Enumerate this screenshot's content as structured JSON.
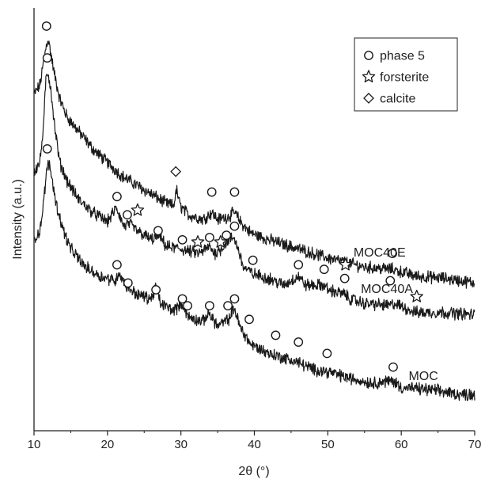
{
  "chart_data": {
    "type": "line",
    "xlabel": "2θ (°)",
    "ylabel": "Intensity (a.u.)",
    "xlim": [
      10,
      70
    ],
    "xticks": [
      10,
      20,
      30,
      40,
      50,
      60,
      70
    ],
    "y_tick_labels": false,
    "grid": false,
    "legend": {
      "placement": "top-right",
      "entries": [
        {
          "label": "phase 5",
          "marker": "circle"
        },
        {
          "label": "forsterite",
          "marker": "star"
        },
        {
          "label": "calcite",
          "marker": "diamond"
        }
      ]
    },
    "series": [
      {
        "name": "MOC40E",
        "x": [
          10.0,
          10.8,
          11.3,
          11.7,
          11.9,
          12.2,
          12.7,
          13.5,
          14.5,
          16,
          18,
          20,
          22,
          24,
          26,
          28,
          29.0,
          29.4,
          29.9,
          31,
          33,
          34.2,
          35,
          36.3,
          37.3,
          38.3,
          39.5,
          42,
          45,
          50,
          55,
          58.8,
          62,
          66,
          70
        ],
        "y": [
          0.79,
          0.81,
          0.86,
          0.9,
          0.91,
          0.89,
          0.84,
          0.78,
          0.74,
          0.71,
          0.67,
          0.64,
          0.61,
          0.59,
          0.57,
          0.55,
          0.545,
          0.58,
          0.545,
          0.525,
          0.515,
          0.53,
          0.515,
          0.52,
          0.53,
          0.505,
          0.485,
          0.47,
          0.455,
          0.43,
          0.41,
          0.405,
          0.39,
          0.385,
          0.375
        ]
      },
      {
        "name": "MOC40A",
        "x": [
          10.0,
          10.8,
          11.3,
          11.6,
          11.9,
          12.3,
          12.8,
          13.5,
          14.5,
          16,
          18,
          20,
          21.2,
          21.5,
          22.2,
          23,
          24,
          26,
          27,
          28,
          30,
          31,
          32.5,
          33.9,
          34.6,
          35.5,
          36.5,
          37.2,
          37.8,
          38.5,
          39.8,
          42,
          44,
          46.0,
          47,
          49.5,
          50,
          52.3,
          53,
          55,
          58.5,
          59,
          62,
          66,
          70
        ],
        "y": [
          0.62,
          0.64,
          0.72,
          0.82,
          0.84,
          0.8,
          0.72,
          0.64,
          0.6,
          0.56,
          0.53,
          0.51,
          0.54,
          0.53,
          0.5,
          0.505,
          0.49,
          0.47,
          0.48,
          0.455,
          0.45,
          0.445,
          0.44,
          0.455,
          0.44,
          0.45,
          0.47,
          0.475,
          0.45,
          0.41,
          0.395,
          0.385,
          0.37,
          0.39,
          0.37,
          0.37,
          0.36,
          0.35,
          0.34,
          0.33,
          0.325,
          0.33,
          0.31,
          0.31,
          0.305
        ]
      },
      {
        "name": "MOC",
        "x": [
          10.0,
          10.8,
          11.3,
          11.7,
          12.0,
          12.4,
          13.0,
          14.0,
          15,
          17,
          19,
          21.2,
          21.5,
          22.5,
          24,
          26,
          26.6,
          27.2,
          29,
          30.2,
          31,
          33,
          33.8,
          35,
          36.5,
          37.3,
          38,
          39.5,
          42,
          44,
          46.0,
          48,
          50,
          53,
          56,
          58.9,
          60,
          64,
          68,
          70
        ],
        "y": [
          0.47,
          0.49,
          0.55,
          0.62,
          0.64,
          0.61,
          0.55,
          0.49,
          0.45,
          0.41,
          0.39,
          0.38,
          0.4,
          0.37,
          0.35,
          0.34,
          0.37,
          0.33,
          0.315,
          0.33,
          0.3,
          0.29,
          0.31,
          0.28,
          0.295,
          0.32,
          0.28,
          0.24,
          0.22,
          0.21,
          0.2,
          0.185,
          0.18,
          0.165,
          0.155,
          0.16,
          0.145,
          0.14,
          0.13,
          0.13
        ]
      }
    ],
    "annotations": [
      {
        "series": "MOC40E",
        "marker": "circle",
        "x": [
          11.7,
          34.2,
          37.3,
          58.8
        ],
        "y": [
          0.94,
          0.575,
          0.575,
          0.44
        ]
      },
      {
        "series": "MOC40E",
        "marker": "diamond",
        "x": [
          29.3
        ],
        "y": [
          0.62
        ]
      },
      {
        "series": "MOC40A",
        "marker": "circle",
        "x": [
          11.8,
          21.3,
          22.7,
          26.9,
          30.2,
          33.9,
          36.2,
          37.3,
          39.8,
          46.0,
          49.5,
          52.3,
          58.5
        ],
        "y": [
          0.87,
          0.565,
          0.525,
          0.49,
          0.47,
          0.475,
          0.48,
          0.5,
          0.425,
          0.415,
          0.405,
          0.385,
          0.38
        ]
      },
      {
        "series": "MOC40A",
        "marker": "star",
        "x": [
          24.1,
          32.3,
          35.4,
          52.4,
          62.1
        ],
        "y": [
          0.535,
          0.465,
          0.465,
          0.415,
          0.345
        ]
      },
      {
        "series": "MOC",
        "marker": "circle",
        "x": [
          11.8,
          21.3,
          22.8,
          26.6,
          30.2,
          30.9,
          33.9,
          36.4,
          37.3,
          39.3,
          42.9,
          46.0,
          49.9,
          58.9
        ],
        "y": [
          0.67,
          0.415,
          0.375,
          0.36,
          0.34,
          0.325,
          0.325,
          0.325,
          0.34,
          0.295,
          0.26,
          0.245,
          0.22,
          0.19
        ]
      }
    ]
  }
}
